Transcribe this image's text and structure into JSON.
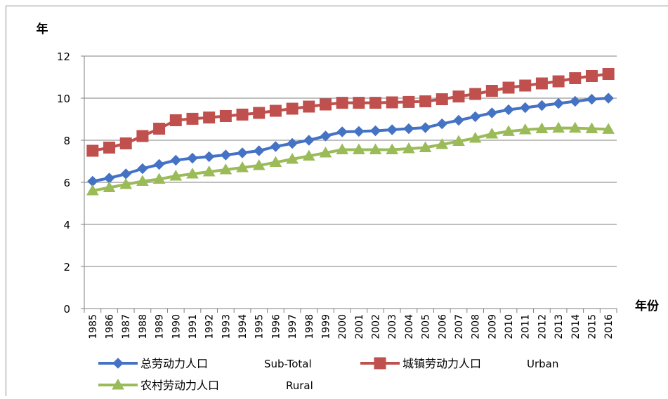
{
  "chart_data": {
    "type": "line",
    "title": "",
    "ylabel": "年",
    "xlabel": "年份",
    "ylim": [
      0,
      12
    ],
    "yticks": [
      0,
      2,
      4,
      6,
      8,
      10,
      12
    ],
    "grid": true,
    "legend_position": "bottom",
    "x": [
      "1985",
      "1986",
      "1987",
      "1988",
      "1989",
      "1990",
      "1991",
      "1992",
      "1993",
      "1994",
      "1995",
      "1996",
      "1997",
      "1998",
      "1999",
      "2000",
      "2001",
      "2002",
      "2003",
      "2004",
      "2005",
      "2006",
      "2007",
      "2008",
      "2009",
      "2010",
      "2011",
      "2012",
      "2013",
      "2014",
      "2015",
      "2016"
    ],
    "series": [
      {
        "name": "总劳动力人口",
        "name_en": "Sub-Total",
        "color": "#4472C4",
        "marker": "diamond",
        "values": [
          6.05,
          6.2,
          6.4,
          6.65,
          6.85,
          7.05,
          7.15,
          7.22,
          7.3,
          7.4,
          7.5,
          7.7,
          7.85,
          8.0,
          8.2,
          8.4,
          8.42,
          8.45,
          8.5,
          8.55,
          8.6,
          8.78,
          8.95,
          9.12,
          9.3,
          9.45,
          9.55,
          9.65,
          9.75,
          9.85,
          9.95,
          10.0
        ]
      },
      {
        "name": "城镇劳动力人口",
        "name_en": "Urban",
        "color": "#C0504D",
        "marker": "square",
        "values": [
          7.5,
          7.65,
          7.85,
          8.2,
          8.55,
          8.95,
          9.02,
          9.08,
          9.15,
          9.22,
          9.3,
          9.4,
          9.5,
          9.6,
          9.7,
          9.78,
          9.78,
          9.78,
          9.8,
          9.82,
          9.85,
          9.95,
          10.08,
          10.2,
          10.35,
          10.5,
          10.6,
          10.7,
          10.8,
          10.95,
          11.05,
          11.15
        ]
      },
      {
        "name": "农村劳动力人口",
        "name_en": "Rural",
        "color": "#9BBB59",
        "marker": "triangle",
        "values": [
          5.6,
          5.75,
          5.9,
          6.05,
          6.15,
          6.3,
          6.4,
          6.5,
          6.6,
          6.7,
          6.8,
          6.95,
          7.1,
          7.25,
          7.4,
          7.55,
          7.55,
          7.55,
          7.55,
          7.6,
          7.65,
          7.8,
          7.95,
          8.1,
          8.3,
          8.42,
          8.5,
          8.55,
          8.58,
          8.58,
          8.55,
          8.52
        ]
      }
    ]
  }
}
